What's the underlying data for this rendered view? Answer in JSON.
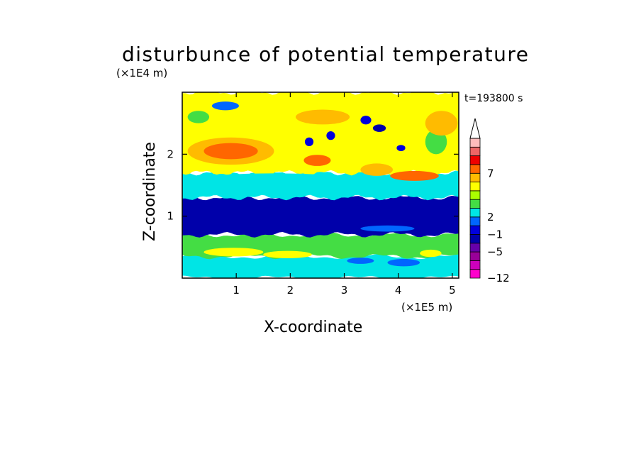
{
  "chart_data": {
    "type": "heatmap",
    "title": "disturbunce of potential temperature",
    "xlabel": "X-coordinate",
    "ylabel": "Z-coordinate",
    "x_scale_label": "(×1E5 m)",
    "y_scale_label": "(×1E4 m)",
    "time_label": "t=193800 s",
    "xlim": [
      0,
      5.12
    ],
    "ylim": [
      0,
      3.0
    ],
    "x_ticks": [
      "1",
      "2",
      "3",
      "4",
      "5"
    ],
    "y_ticks": [
      "1",
      "2"
    ],
    "colorbar": {
      "tick_labels": [
        "7",
        "2",
        "−1",
        "−5",
        "−12"
      ],
      "colors": [
        "#ff00cc",
        "#cc00bb",
        "#990099",
        "#6600aa",
        "#0000aa",
        "#0000dd",
        "#0066ff",
        "#00e5e5",
        "#44dd44",
        "#aaff00",
        "#ffff00",
        "#ffbb00",
        "#ff6600",
        "#ee0000",
        "#ee6666",
        "#ffbbbb"
      ],
      "extend_top": true
    },
    "bands": [
      {
        "z_from": 0.0,
        "z_to": 0.35,
        "dominant": "#00e5e5",
        "note": ""
      },
      {
        "z_from": 0.35,
        "z_to": 0.7,
        "dominant": "#44dd44",
        "note": ""
      },
      {
        "z_from": 0.7,
        "z_to": 1.3,
        "dominant": "#0000aa",
        "note": ""
      },
      {
        "z_from": 1.3,
        "z_to": 1.7,
        "dominant": "#00e5e5",
        "note": ""
      },
      {
        "z_from": 1.7,
        "z_to": 3.0,
        "dominant": "#ffff00",
        "note": ""
      }
    ]
  },
  "colors": {
    "frame": "#000000",
    "background": "#ffffff"
  }
}
